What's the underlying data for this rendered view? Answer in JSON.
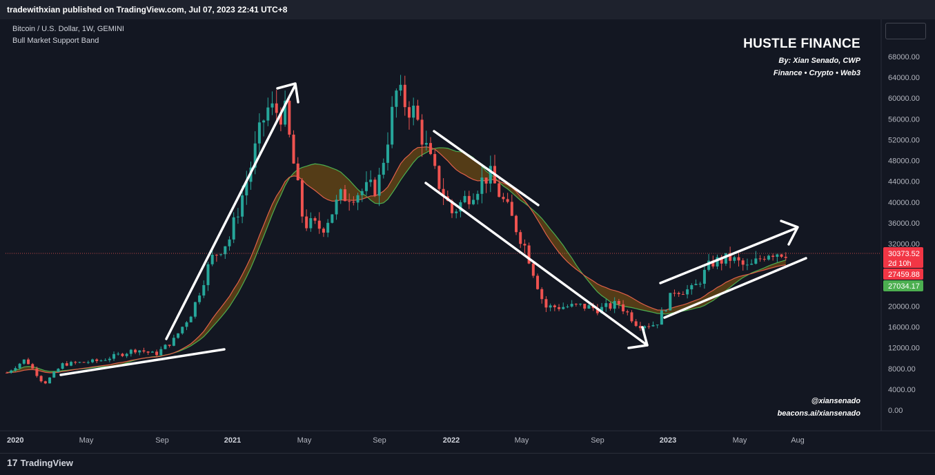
{
  "header": {
    "published": "tradewithxian published on TradingView.com, Jul 07, 2023 22:41 UTC+8"
  },
  "symbol": {
    "title": "Bitcoin / U.S. Dollar, 1W, GEMINI",
    "indicator": "Bull Market Support Band"
  },
  "brand": {
    "name": "HUSTLE FINANCE",
    "by": "By: Xian Senado, CWP",
    "tagline": "Finance • Crypto • Web3",
    "handle": "@xiansenado",
    "link": "beacons.ai/xiansenado"
  },
  "footer": {
    "logo_mark": "17",
    "logo_text": "TradingView"
  },
  "colors": {
    "up": "#26a69a",
    "down": "#ef5350",
    "band_fill": "#6b4a14",
    "sma": "#4caf50",
    "ema": "#e0604a"
  },
  "chart_data": {
    "type": "candlestick",
    "y_ticks": [
      "68000.00",
      "64000.00",
      "60000.00",
      "56000.00",
      "52000.00",
      "48000.00",
      "44000.00",
      "40000.00",
      "36000.00",
      "32000.00",
      "28000.00",
      "24000.00",
      "20000.00",
      "16000.00",
      "12000.00",
      "8000.00",
      "4000.00",
      "0.00"
    ],
    "x_ticks": [
      "2020",
      "May",
      "Sep",
      "2021",
      "May",
      "Sep",
      "2022",
      "May",
      "Sep",
      "2023",
      "May",
      "Aug"
    ],
    "labels": {
      "last_price": "30373.52",
      "countdown": "2d 10h",
      "band_upper": "27459.88",
      "band_lower": "27034.17"
    },
    "price_anchors": [
      [
        "2020-01",
        7200
      ],
      [
        "2020-02",
        9800
      ],
      [
        "2020-03",
        5000
      ],
      [
        "2020-04",
        8800
      ],
      [
        "2020-06",
        9500
      ],
      [
        "2020-08",
        11700
      ],
      [
        "2020-09",
        10700
      ],
      [
        "2020-10",
        13500
      ],
      [
        "2020-11",
        19000
      ],
      [
        "2020-12",
        29000
      ],
      [
        "2021-01",
        33000
      ],
      [
        "2021-02",
        45000
      ],
      [
        "2021-03",
        58000
      ],
      [
        "2021-04",
        57000
      ],
      [
        "2021-05",
        36000
      ],
      [
        "2021-06",
        35000
      ],
      [
        "2021-07",
        41000
      ],
      [
        "2021-09",
        43000
      ],
      [
        "2021-10",
        61000
      ],
      [
        "2021-11",
        57000
      ],
      [
        "2021-12",
        46000
      ],
      [
        "2022-01",
        38000
      ],
      [
        "2022-03",
        45500
      ],
      [
        "2022-04",
        38500
      ],
      [
        "2022-05",
        31000
      ],
      [
        "2022-06",
        19800
      ],
      [
        "2022-08",
        20000
      ],
      [
        "2022-09",
        19400
      ],
      [
        "2022-10",
        20500
      ],
      [
        "2022-11",
        16500
      ],
      [
        "2022-12",
        16500
      ],
      [
        "2023-01",
        23100
      ],
      [
        "2023-02",
        23100
      ],
      [
        "2023-03",
        28400
      ],
      [
        "2023-04",
        29200
      ],
      [
        "2023-05",
        27200
      ],
      [
        "2023-06",
        30400
      ],
      [
        "2023-07",
        30373
      ]
    ]
  }
}
